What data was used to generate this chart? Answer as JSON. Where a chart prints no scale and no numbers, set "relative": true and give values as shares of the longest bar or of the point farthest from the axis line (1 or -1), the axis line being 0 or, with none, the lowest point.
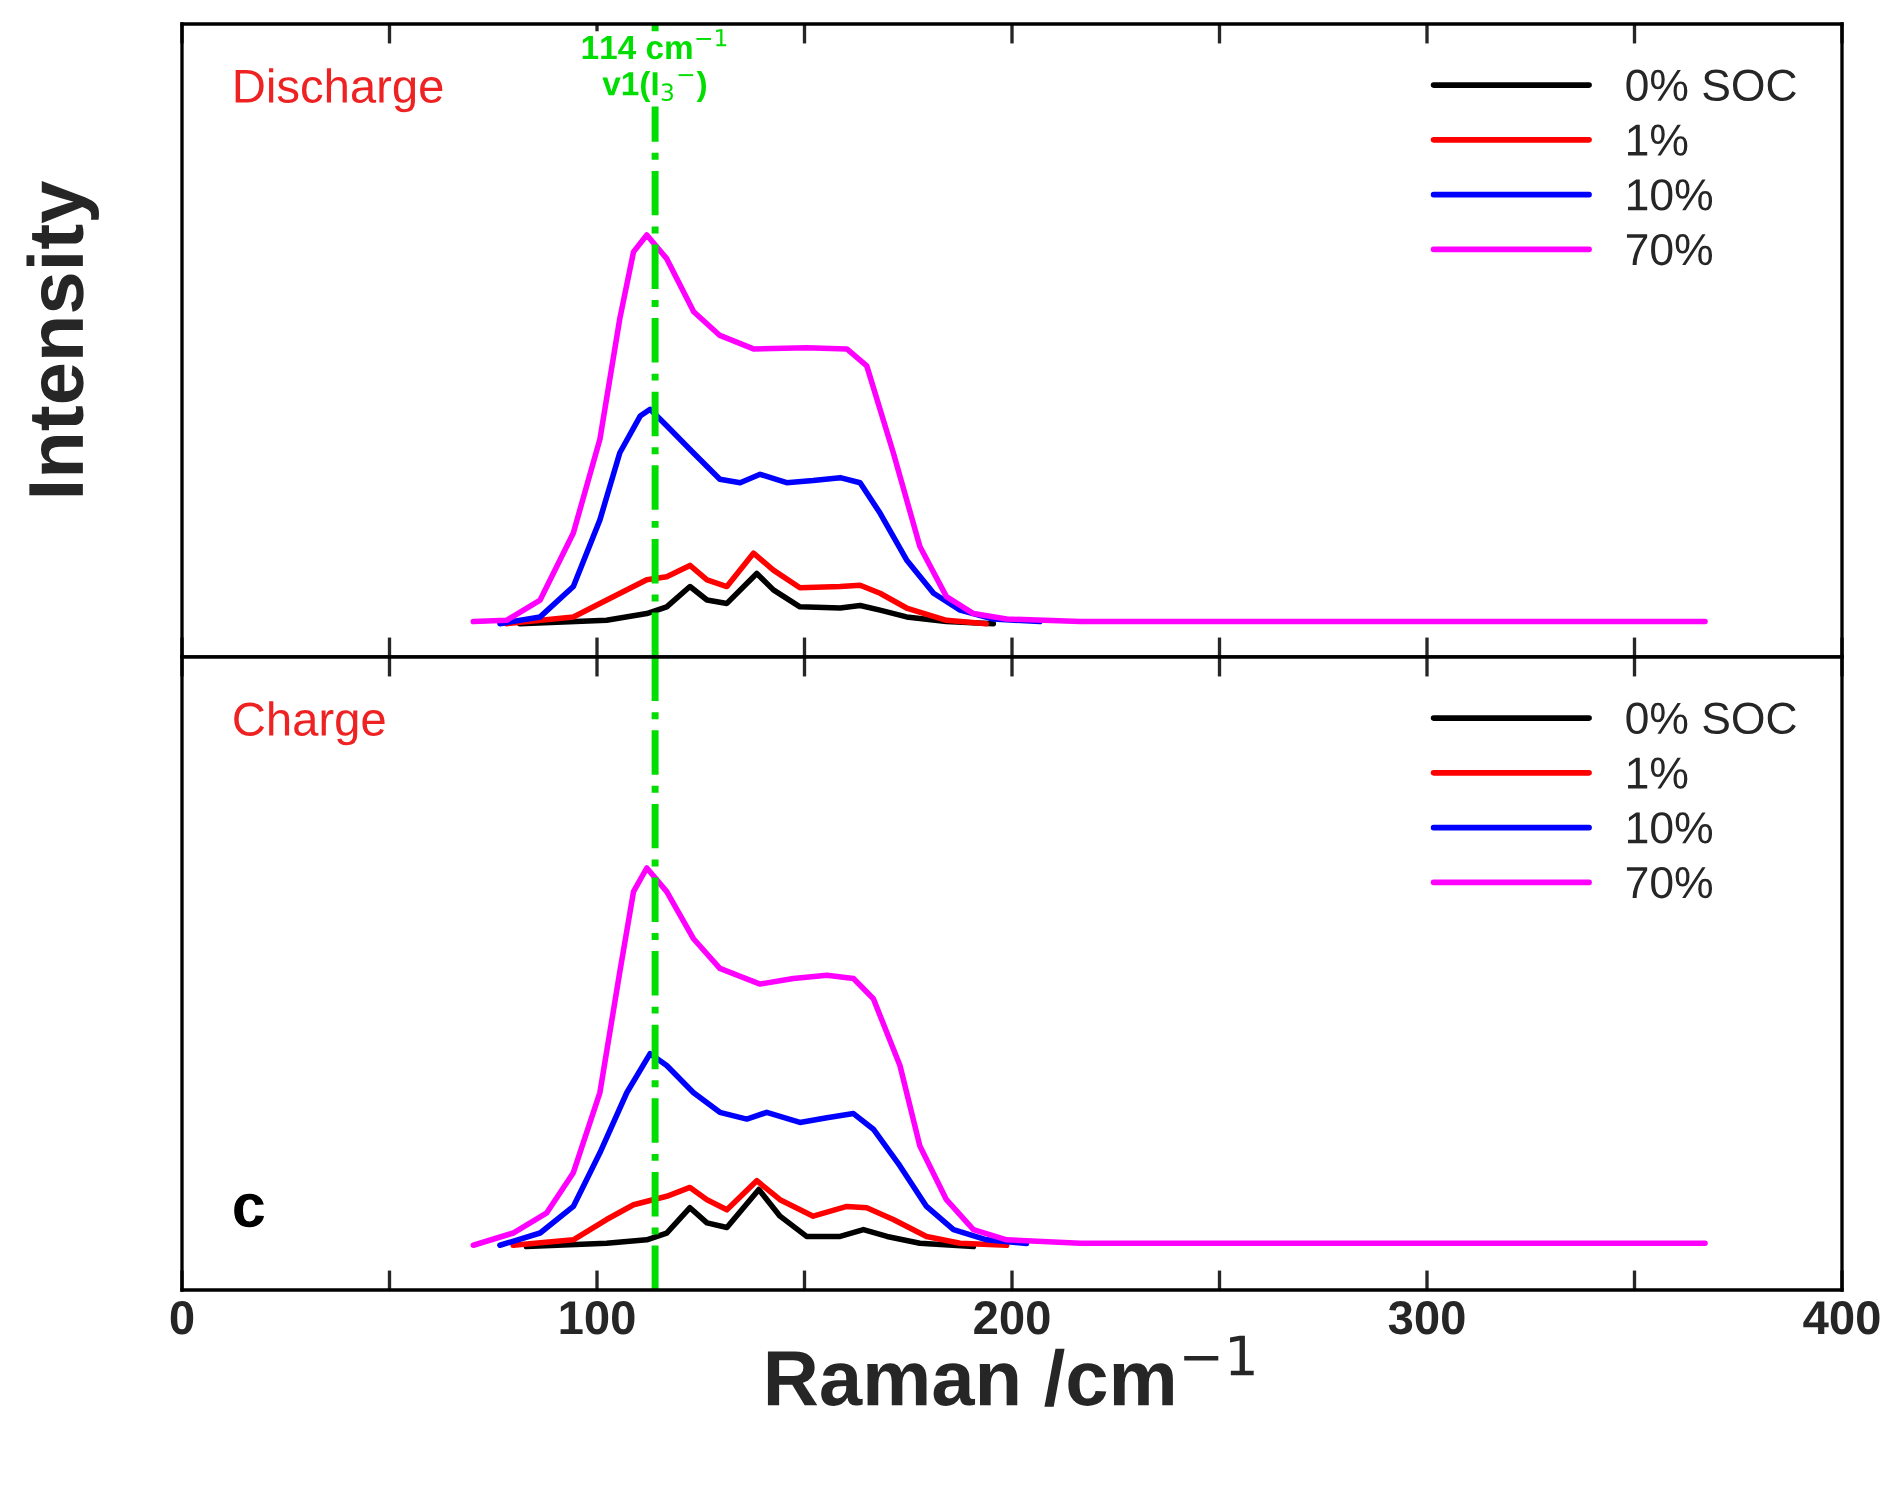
{
  "chart_data": [
    {
      "type": "line",
      "relative": true,
      "ylabel": "Intensity",
      "xlim": [
        0,
        400
      ],
      "xticks": [
        0,
        {
          "value": 50,
          "label": null
        },
        100,
        {
          "value": 150,
          "label": null
        },
        200,
        {
          "value": 250,
          "label": null
        },
        300,
        {
          "value": 350,
          "label": null
        },
        400
      ],
      "tick_labels": false,
      "legend": "top right",
      "annotations": [
        "Discharge"
      ],
      "ref_lines": [
        {
          "axis": "x",
          "value": 114,
          "label": "114 cm$^{−1}$\nv1(I$_{3}$$^{−}$)",
          "color": "#00dd00",
          "line_style": "dashdot"
        }
      ],
      "series": [
        {
          "name": "0% SOC",
          "color": "#000000",
          "x": [
            81.4,
            102.3,
            112.0,
            116.8,
            122.4,
            126.5,
            131.3,
            138.5,
            142.5,
            148.9,
            158.6,
            163.4,
            168.2,
            174.6,
            184.2,
            195.5
          ],
          "values": [
            0.079,
            0.087,
            0.103,
            0.119,
            0.167,
            0.135,
            0.127,
            0.198,
            0.159,
            0.119,
            0.116,
            0.122,
            0.111,
            0.095,
            0.084,
            0.079
          ]
        },
        {
          "name": "1%",
          "color": "#ff0000",
          "x": [
            78.2,
            94.3,
            103.9,
            112.0,
            116.8,
            122.4,
            126.5,
            131.3,
            137.7,
            142.5,
            148.9,
            158.6,
            163.4,
            168.2,
            174.6,
            184.2,
            193.8
          ],
          "values": [
            0.079,
            0.095,
            0.143,
            0.183,
            0.19,
            0.217,
            0.183,
            0.167,
            0.246,
            0.206,
            0.164,
            0.167,
            0.17,
            0.151,
            0.116,
            0.087,
            0.079
          ]
        },
        {
          "name": "10%",
          "color": "#0000ff",
          "x": [
            76.6,
            86.3,
            94.3,
            100.7,
            105.5,
            110.4,
            112.8,
            116.8,
            123.2,
            129.6,
            134.5,
            139.3,
            145.7,
            152.1,
            158.6,
            163.4,
            168.2,
            174.6,
            181.1,
            187.5,
            195.5,
            206.7
          ],
          "values": [
            0.079,
            0.095,
            0.167,
            0.325,
            0.484,
            0.571,
            0.587,
            0.548,
            0.484,
            0.421,
            0.413,
            0.433,
            0.413,
            0.418,
            0.425,
            0.413,
            0.341,
            0.23,
            0.151,
            0.111,
            0.09,
            0.084
          ]
        },
        {
          "name": "70%",
          "color": "#ff00ff",
          "x": [
            70.2,
            78.2,
            86.3,
            94.3,
            100.7,
            105.5,
            108.8,
            112.0,
            116.8,
            123.3,
            129.6,
            137.7,
            150.5,
            160.2,
            165.0,
            171.4,
            177.8,
            184.2,
            190.7,
            198.7,
            216.4,
            367
          ],
          "values": [
            0.084,
            0.087,
            0.135,
            0.294,
            0.516,
            0.802,
            0.96,
            1.0,
            0.944,
            0.818,
            0.762,
            0.73,
            0.733,
            0.73,
            0.69,
            0.484,
            0.262,
            0.143,
            0.103,
            0.09,
            0.084,
            0.084
          ]
        }
      ]
    },
    {
      "type": "line",
      "relative": true,
      "xlabel": "Raman /cm$^{−1}$",
      "xlim": [
        0,
        400
      ],
      "xticks": [
        0,
        {
          "value": 50,
          "label": null
        },
        100,
        {
          "value": 150,
          "label": null
        },
        200,
        {
          "value": 250,
          "label": null
        },
        300,
        {
          "value": 350,
          "label": null
        },
        400
      ],
      "tick_labels": "x",
      "legend": "top right",
      "annotations": [
        "Charge",
        "c"
      ],
      "ref_lines": [
        {
          "axis": "x",
          "value": 114,
          "label": null,
          "color": "#00dd00",
          "line_style": "dashdot"
        }
      ],
      "series": [
        {
          "name": "0% SOC",
          "color": "#000000",
          "x": [
            83.0,
            102.3,
            112.0,
            116.8,
            122.4,
            126.5,
            131.3,
            139.0,
            144.1,
            150.5,
            158.6,
            164.2,
            169.9,
            177.8,
            190.7
          ],
          "values": [
            0.103,
            0.111,
            0.119,
            0.135,
            0.195,
            0.159,
            0.148,
            0.238,
            0.175,
            0.127,
            0.127,
            0.143,
            0.127,
            0.111,
            0.103
          ]
        },
        {
          "name": "1%",
          "color": "#ff0000",
          "x": [
            79.8,
            94.3,
            102.3,
            108.8,
            116.8,
            122.4,
            126.5,
            131.3,
            138.5,
            144.1,
            152.1,
            160.2,
            165.0,
            171.4,
            179.4,
            187.5,
            198.7
          ],
          "values": [
            0.106,
            0.119,
            0.167,
            0.202,
            0.222,
            0.243,
            0.214,
            0.19,
            0.259,
            0.214,
            0.175,
            0.198,
            0.195,
            0.167,
            0.127,
            0.111,
            0.106
          ]
        },
        {
          "name": "10%",
          "color": "#0000ff",
          "x": [
            76.6,
            86.3,
            94.3,
            100.7,
            107.2,
            112.8,
            116.8,
            123.2,
            129.6,
            136.1,
            140.9,
            148.9,
            155.4,
            161.8,
            166.6,
            173.0,
            179.4,
            185.9,
            193.9,
            203.5
          ],
          "values": [
            0.106,
            0.135,
            0.198,
            0.325,
            0.468,
            0.56,
            0.532,
            0.468,
            0.421,
            0.405,
            0.421,
            0.397,
            0.408,
            0.418,
            0.381,
            0.294,
            0.198,
            0.143,
            0.119,
            0.11
          ]
        },
        {
          "name": "70%",
          "color": "#ff00ff",
          "x": [
            70.2,
            79.8,
            87.9,
            94.3,
            100.7,
            105.5,
            108.8,
            112.0,
            116.8,
            123.2,
            129.6,
            139.3,
            147.3,
            155.4,
            161.8,
            166.6,
            173.0,
            177.8,
            184.2,
            190.7,
            198.7,
            216.4,
            367
          ],
          "values": [
            0.106,
            0.135,
            0.183,
            0.278,
            0.468,
            0.754,
            0.944,
            1.0,
            0.944,
            0.833,
            0.762,
            0.725,
            0.738,
            0.746,
            0.738,
            0.69,
            0.532,
            0.341,
            0.214,
            0.143,
            0.119,
            0.111,
            0.111
          ]
        }
      ]
    }
  ]
}
